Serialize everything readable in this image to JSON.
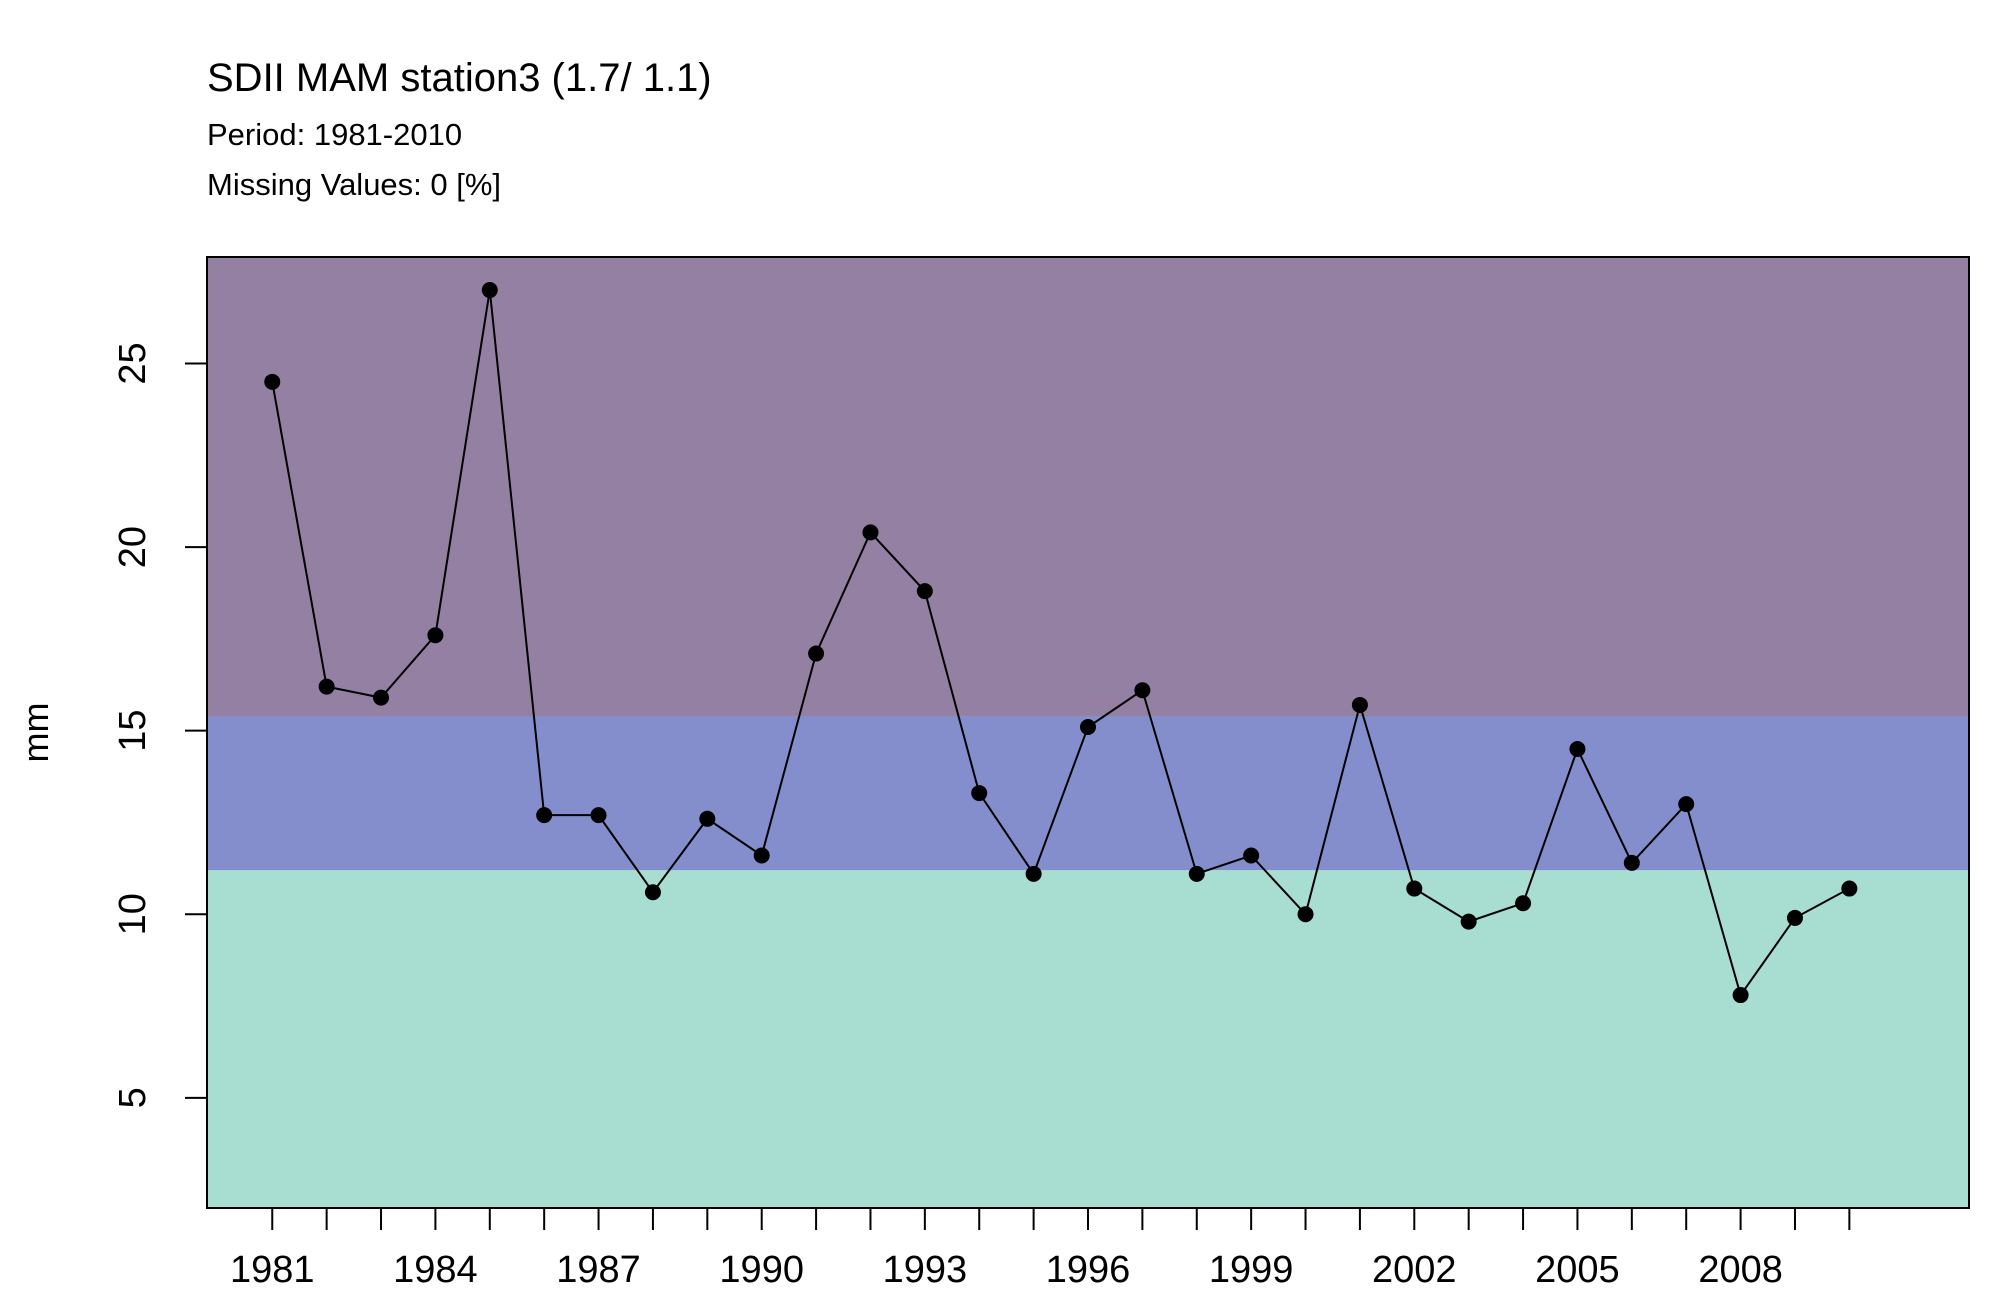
{
  "chart_data": {
    "type": "line",
    "title": "SDII MAM station3 (1.7/ 1.1)",
    "subtitle_lines": [
      "Period: 1981-2010",
      "Missing Values: 0 [%]"
    ],
    "ylabel": "mm",
    "xlabel": "",
    "xlim": [
      1979.8,
      2012.2
    ],
    "ylim": [
      2.0,
      27.9
    ],
    "x_ticks": [
      1981,
      1982,
      1983,
      1984,
      1985,
      1986,
      1987,
      1988,
      1989,
      1990,
      1991,
      1992,
      1993,
      1994,
      1995,
      1996,
      1997,
      1998,
      1999,
      2000,
      2001,
      2002,
      2003,
      2004,
      2005,
      2006,
      2007,
      2008,
      2009,
      2010
    ],
    "x_tick_labels": [
      {
        "x": 1981,
        "label": "1981"
      },
      {
        "x": 1984,
        "label": "1984"
      },
      {
        "x": 1987,
        "label": "1987"
      },
      {
        "x": 1990,
        "label": "1990"
      },
      {
        "x": 1993,
        "label": "1993"
      },
      {
        "x": 1996,
        "label": "1996"
      },
      {
        "x": 1999,
        "label": "1999"
      },
      {
        "x": 2002,
        "label": "2002"
      },
      {
        "x": 2005,
        "label": "2005"
      },
      {
        "x": 2008,
        "label": "2008"
      }
    ],
    "y_ticks": [
      5,
      10,
      15,
      20,
      25
    ],
    "bands": [
      {
        "from": 2.0,
        "to": 11.2,
        "color": "#a8ddd1"
      },
      {
        "from": 11.2,
        "to": 15.4,
        "color": "#858ecc"
      },
      {
        "from": 15.4,
        "to": 27.9,
        "color": "#9480a2"
      }
    ],
    "series": [
      {
        "color": "#000000",
        "x": [
          1981,
          1982,
          1983,
          1984,
          1985,
          1986,
          1987,
          1988,
          1989,
          1990,
          1991,
          1992,
          1993,
          1994,
          1995,
          1996,
          1997,
          1998,
          1999,
          2000,
          2001,
          2002,
          2003,
          2004,
          2005,
          2006,
          2007,
          2008,
          2009,
          2010
        ],
        "values": [
          24.5,
          16.2,
          15.9,
          17.6,
          27.0,
          12.7,
          12.7,
          10.6,
          12.6,
          11.6,
          17.1,
          20.4,
          18.8,
          13.3,
          11.1,
          15.1,
          16.1,
          11.1,
          11.6,
          10.0,
          15.7,
          10.7,
          9.8,
          10.3,
          14.5,
          11.4,
          13.0,
          7.8,
          9.9,
          10.7
        ]
      }
    ]
  }
}
